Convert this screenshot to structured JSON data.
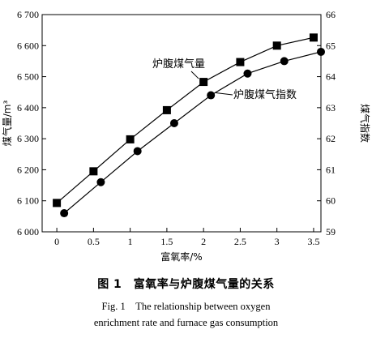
{
  "chart_data": {
    "type": "line",
    "xlabel": "富氧率/%",
    "ylabel_left": "煤气量/m³",
    "ylabel_right": "煤气指数",
    "xlim": [
      -0.2,
      3.6
    ],
    "ylim_left": [
      6000,
      6700
    ],
    "ylim_right": [
      59,
      66
    ],
    "x_ticks": [
      0,
      0.5,
      1,
      1.5,
      2,
      2.5,
      3,
      3.5
    ],
    "x_tick_labels": [
      "0",
      "0.5",
      "1",
      "1.5",
      "2",
      "2.5",
      "3",
      "3.5"
    ],
    "y_left_ticks": [
      6000,
      6100,
      6200,
      6300,
      6400,
      6500,
      6600,
      6700
    ],
    "y_left_tick_labels": [
      "6 000",
      "6 100",
      "6 200",
      "6 300",
      "6 400",
      "6 500",
      "6 600",
      "6 700"
    ],
    "y_right_ticks": [
      59,
      60,
      61,
      62,
      63,
      64,
      65,
      66
    ],
    "y_right_tick_labels": [
      "59",
      "60",
      "61",
      "62",
      "63",
      "64",
      "65",
      "66"
    ],
    "grid": false,
    "series": [
      {
        "name": "炉腹煤气量",
        "axis": "left",
        "marker": "square",
        "x": [
          0,
          0.5,
          1.0,
          1.5,
          2.0,
          2.5,
          3.0,
          3.5
        ],
        "y": [
          6093,
          6195,
          6298,
          6392,
          6483,
          6547,
          6600,
          6626
        ]
      },
      {
        "name": "炉腹煤气指数",
        "axis": "right",
        "marker": "circle",
        "x": [
          0.1,
          0.6,
          1.1,
          1.6,
          2.1,
          2.6,
          3.1,
          3.6
        ],
        "y": [
          59.6,
          60.6,
          61.6,
          62.5,
          63.4,
          64.1,
          64.5,
          64.8
        ]
      }
    ],
    "annotations": [
      {
        "text": "炉腹煤气量",
        "series": 0
      },
      {
        "text": "炉腹煤气指数",
        "series": 1
      }
    ]
  },
  "caption": {
    "zh": "图 1　富氧率与炉腹煤气量的关系",
    "en_line1": "Fig. 1　The relationship between oxygen",
    "en_line2": "enrichment rate and furnace gas consumption"
  }
}
